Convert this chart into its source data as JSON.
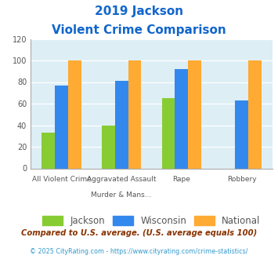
{
  "title_line1": "2019 Jackson",
  "title_line2": "Violent Crime Comparison",
  "cat_labels_top": [
    "",
    "Aggravated Assault",
    "",
    ""
  ],
  "cat_labels_bot": [
    "All Violent Crime",
    "Murder & Mans...",
    "Rape",
    "Robbery"
  ],
  "groups": {
    "Jackson": [
      33,
      40,
      65,
      0
    ],
    "Wisconsin": [
      77,
      81,
      92,
      63
    ],
    "National": [
      100,
      100,
      100,
      100
    ]
  },
  "colors": {
    "Jackson": "#88cc33",
    "Wisconsin": "#3388ee",
    "National": "#ffaa33"
  },
  "ylim": [
    0,
    120
  ],
  "yticks": [
    0,
    20,
    40,
    60,
    80,
    100,
    120
  ],
  "plot_bg": "#ddeef5",
  "title_color": "#1166cc",
  "footer_text": "Compared to U.S. average. (U.S. average equals 100)",
  "copyright_text": "© 2025 CityRating.com - https://www.cityrating.com/crime-statistics/",
  "footer_color": "#883300",
  "copyright_color": "#3399cc",
  "legend_label_color": "#555555"
}
